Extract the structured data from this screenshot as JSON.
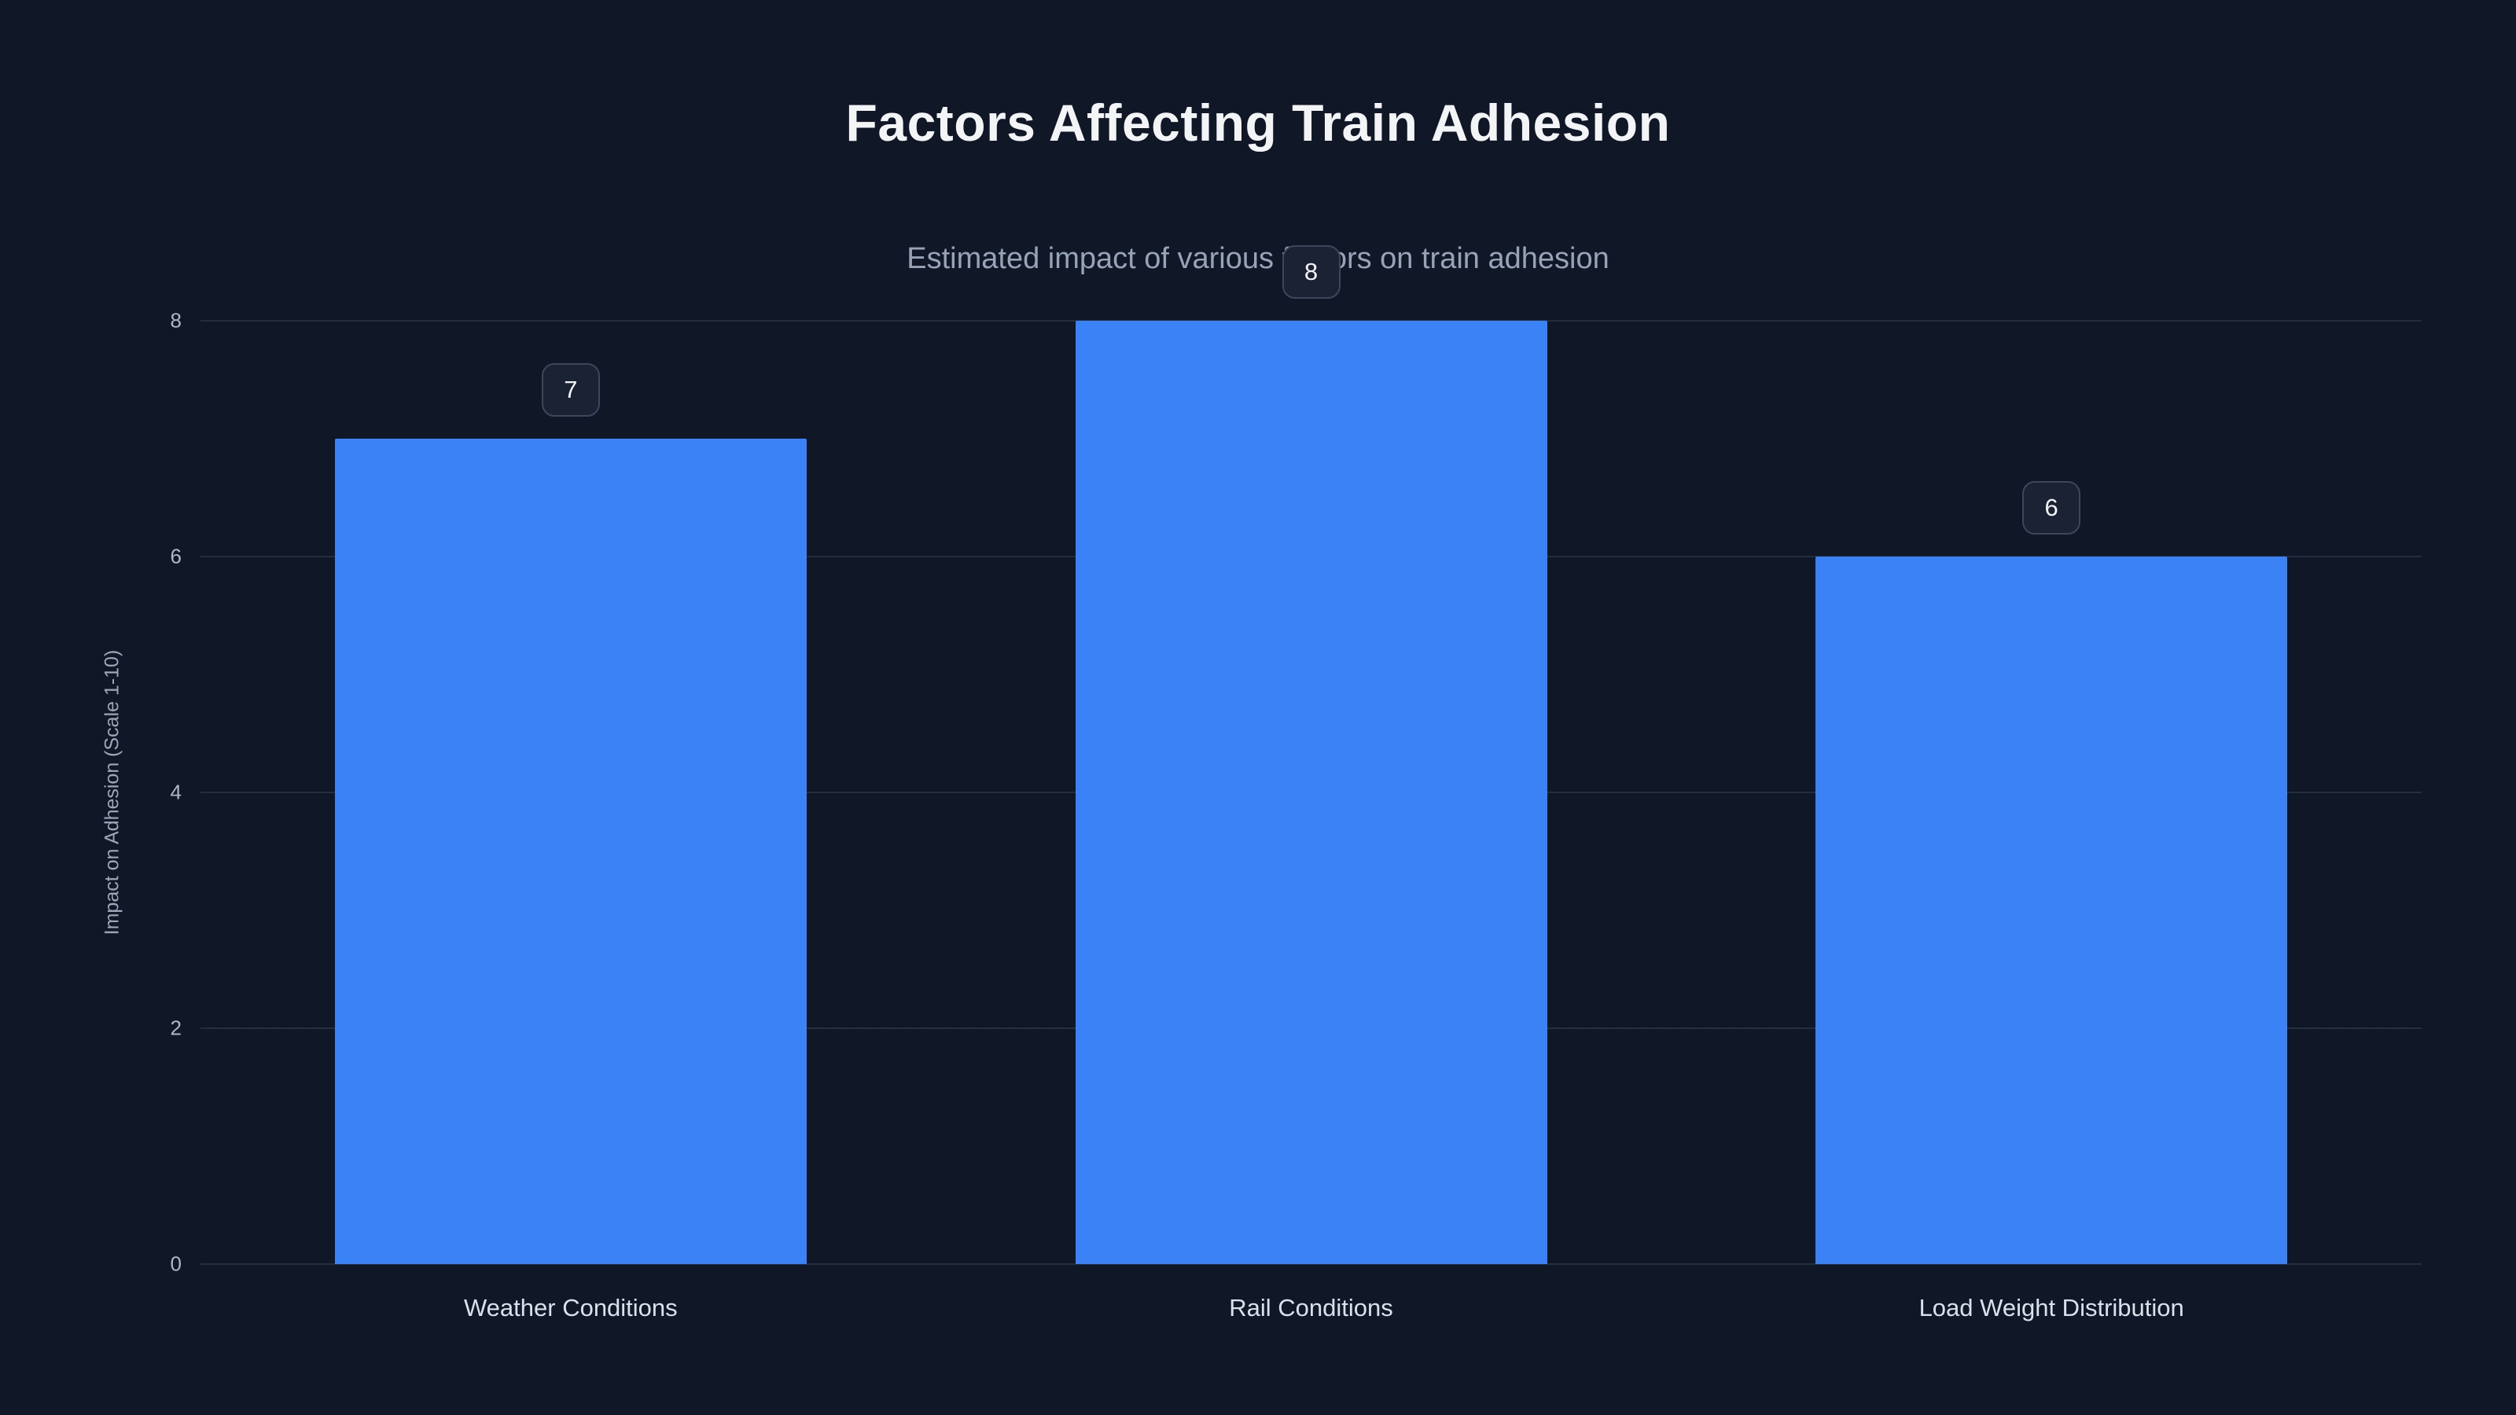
{
  "title": "Factors Affecting Train Adhesion",
  "subtitle": "Estimated impact of various factors on train adhesion",
  "chart_data": {
    "type": "bar",
    "title": "Factors Affecting Train Adhesion",
    "subtitle": "Estimated impact of various factors on train adhesion",
    "categories": [
      "Weather Conditions",
      "Rail Conditions",
      "Load Weight Distribution"
    ],
    "values": [
      7,
      8,
      6
    ],
    "value_labels": [
      "7",
      "8",
      "6"
    ],
    "xlabel": "",
    "ylabel": "Impact on Adhesion (Scale 1-10)",
    "ylim": [
      0,
      8
    ],
    "yticks": [
      0,
      2,
      4,
      6,
      8
    ],
    "grid": true,
    "legend": false,
    "colors": {
      "background": "#101828",
      "bar": "#3b82f6",
      "gridline": "rgba(148,163,184,0.16)",
      "title_text": "#f3f4f6",
      "subtitle_text": "#97a3b6",
      "tick_text": "#aeb8c8",
      "badge_background": "#1a2234",
      "badge_border": "#3c475c"
    }
  }
}
